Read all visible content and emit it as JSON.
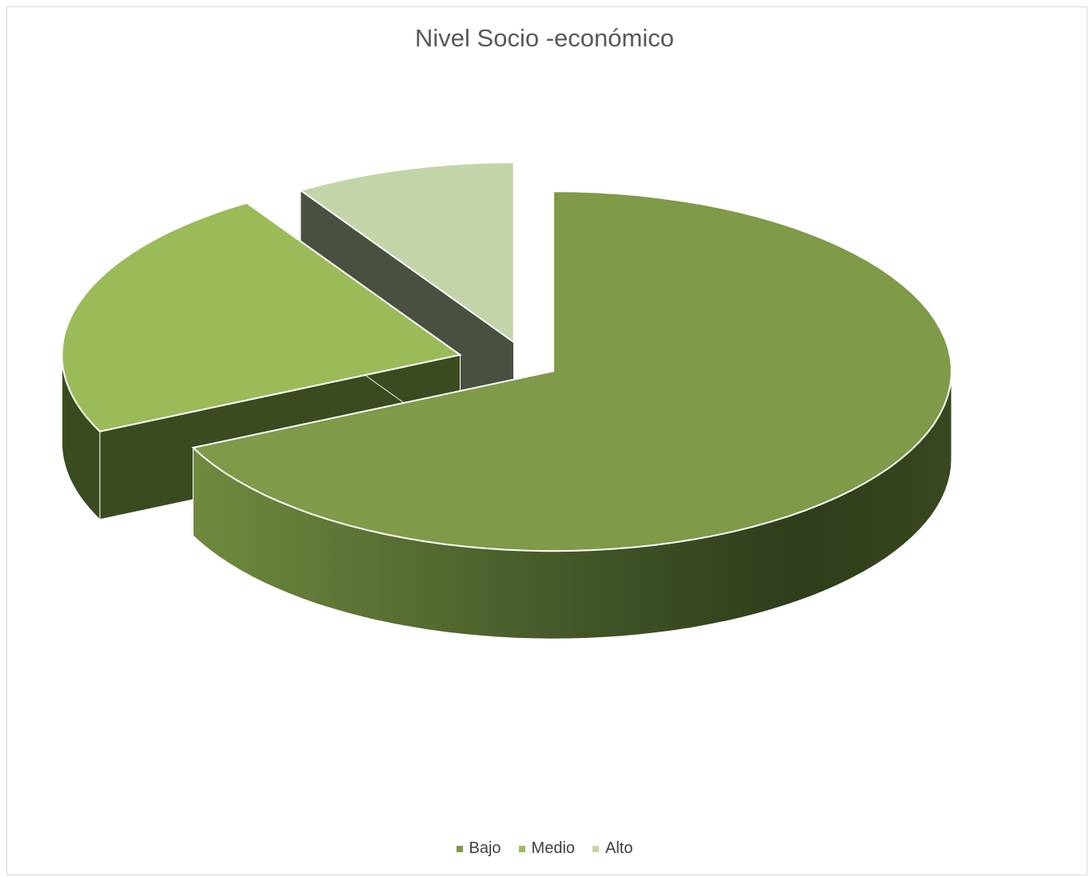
{
  "chart_data": {
    "type": "pie",
    "title": "Nivel Socio -económico",
    "categories": [
      "Bajo",
      "Medio",
      "Alto"
    ],
    "values": [
      68,
      23,
      9
    ],
    "colors": [
      "#7f9a48",
      "#9bbb59",
      "#c3d5a8"
    ],
    "legend_position": "bottom",
    "style": "3d-exploded"
  }
}
